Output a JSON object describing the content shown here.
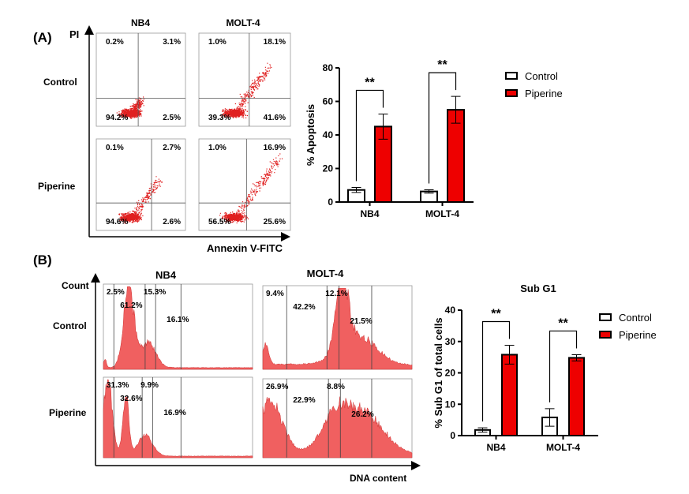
{
  "panel_a": {
    "label": "(A)",
    "y_axis_label": "PI",
    "x_axis_label": "Annexin V-FITC",
    "columns": [
      "NB4",
      "MOLT-4"
    ],
    "rows": [
      "Control",
      "Piperine"
    ],
    "quadrants": [
      {
        "cell": "NB4 Control",
        "ul": "0.2%",
        "ur": "3.1%",
        "ll": "94.2%",
        "lr": "2.5%"
      },
      {
        "cell": "MOLT-4 Control",
        "ul": "1.0%",
        "ur": "18.1%",
        "ll": "39.3%",
        "lr": "41.6%"
      },
      {
        "cell": "NB4 Piperine",
        "ul": "0.1%",
        "ur": "2.7%",
        "ll": "94.6%",
        "lr": "2.6%"
      },
      {
        "cell": "MOLT-4 Piperine",
        "ul": "1.0%",
        "ur": "16.9%",
        "ll": "56.5%",
        "lr": "25.6%"
      }
    ]
  },
  "panel_b": {
    "label": "(B)",
    "y_axis_label": "Count",
    "x_axis_label": "DNA content",
    "columns": [
      "NB4",
      "MOLT-4"
    ],
    "rows": [
      "Control",
      "Piperine"
    ],
    "phases": [
      {
        "cell": "NB4 Control",
        "subg1": "2.5%",
        "g1": "61.2%",
        "s": "15.3%",
        "g2m": "16.1%"
      },
      {
        "cell": "MOLT-4 Control",
        "subg1": "9.4%",
        "g1": "42.2%",
        "s": "12.1%",
        "g2m": "21.5%"
      },
      {
        "cell": "NB4 Piperine",
        "subg1": "31.3%",
        "g1": "32.6%",
        "s": "9.9%",
        "g2m": "16.9%"
      },
      {
        "cell": "MOLT-4 Piperine",
        "subg1": "26.9%",
        "g1": "22.9%",
        "s": "8.8%",
        "g2m": "26.2%"
      }
    ]
  },
  "colors": {
    "control": "#ffffff",
    "piperine": "#ee0000",
    "scatter": "#e02020",
    "hist": "#f06060"
  },
  "chart_data": [
    {
      "type": "bar",
      "title": "",
      "categories": [
        "NB4",
        "MOLT-4"
      ],
      "xlabel": "",
      "ylabel": "% Apoptosis",
      "ylim": [
        0,
        80
      ],
      "yticks": [
        "0",
        "20",
        "40",
        "60",
        "80"
      ],
      "series": [
        {
          "name": "Control",
          "values": [
            7.2,
            6.3
          ],
          "errors": [
            1.5,
            1.0
          ]
        },
        {
          "name": "Piperine",
          "values": [
            45,
            55
          ],
          "errors": [
            7.5,
            8
          ]
        }
      ],
      "significance": [
        "**",
        "**"
      ],
      "legend": "top-right"
    },
    {
      "type": "bar",
      "title": "Sub G1",
      "categories": [
        "NB4",
        "MOLT-4"
      ],
      "xlabel": "",
      "ylabel": "% Sub G1 of total cells",
      "ylim": [
        0,
        40
      ],
      "yticks": [
        "0",
        "10",
        "20",
        "30",
        "40"
      ],
      "series": [
        {
          "name": "Control",
          "values": [
            1.8,
            5.8
          ],
          "errors": [
            0.7,
            2.8
          ]
        },
        {
          "name": "Piperine",
          "values": [
            25.8,
            24.8
          ],
          "errors": [
            3.0,
            1.0
          ]
        }
      ],
      "significance": [
        "**",
        "**"
      ],
      "legend": "top-right"
    }
  ]
}
